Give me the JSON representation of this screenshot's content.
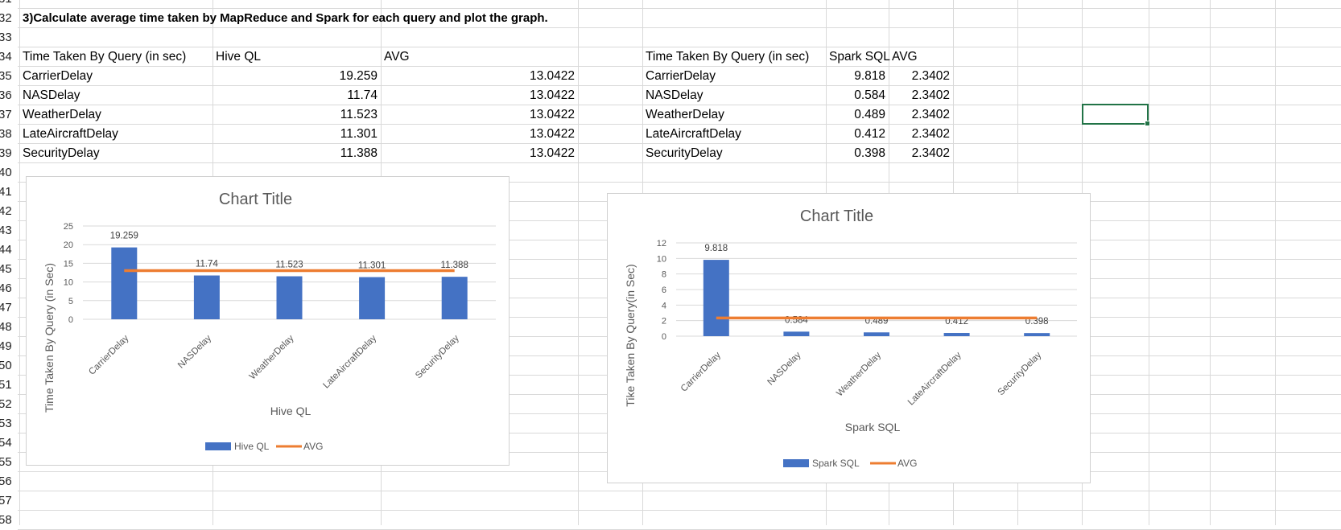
{
  "rows": [
    {
      "num": "31",
      "cells": []
    },
    {
      "num": "32",
      "cells": [
        {
          "col": "A",
          "text": "3)Calculate average time taken by MapReduce and Spark for each query and plot the graph.",
          "cls": "title32"
        }
      ]
    },
    {
      "num": "33",
      "cells": []
    },
    {
      "num": "34",
      "cells": [
        {
          "col": "A",
          "text": "Time Taken By Query (in sec)"
        },
        {
          "col": "B",
          "text": "Hive QL"
        },
        {
          "col": "C",
          "text": "AVG"
        },
        {
          "col": "E",
          "text": "Time Taken By Query (in sec)"
        },
        {
          "col": "F",
          "text": "Spark SQL"
        },
        {
          "col": "G",
          "text": "AVG"
        }
      ]
    },
    {
      "num": "35",
      "cells": [
        {
          "col": "A",
          "text": "CarrierDelay"
        },
        {
          "col": "B",
          "text": "19.259",
          "num": true
        },
        {
          "col": "C",
          "text": "13.0422",
          "num": true
        },
        {
          "col": "E",
          "text": "CarrierDelay"
        },
        {
          "col": "F",
          "text": "9.818",
          "num": true
        },
        {
          "col": "G",
          "text": "2.3402",
          "num": true
        }
      ]
    },
    {
      "num": "36",
      "cells": [
        {
          "col": "A",
          "text": "NASDelay"
        },
        {
          "col": "B",
          "text": "11.74",
          "num": true
        },
        {
          "col": "C",
          "text": "13.0422",
          "num": true
        },
        {
          "col": "E",
          "text": "NASDelay"
        },
        {
          "col": "F",
          "text": "0.584",
          "num": true
        },
        {
          "col": "G",
          "text": "2.3402",
          "num": true
        }
      ]
    },
    {
      "num": "37",
      "cells": [
        {
          "col": "A",
          "text": "WeatherDelay"
        },
        {
          "col": "B",
          "text": "11.523",
          "num": true
        },
        {
          "col": "C",
          "text": "13.0422",
          "num": true
        },
        {
          "col": "E",
          "text": "WeatherDelay"
        },
        {
          "col": "F",
          "text": "0.489",
          "num": true
        },
        {
          "col": "G",
          "text": "2.3402",
          "num": true
        }
      ]
    },
    {
      "num": "38",
      "cells": [
        {
          "col": "A",
          "text": "LateAircraftDelay"
        },
        {
          "col": "B",
          "text": "11.301",
          "num": true
        },
        {
          "col": "C",
          "text": "13.0422",
          "num": true
        },
        {
          "col": "E",
          "text": "LateAircraftDelay"
        },
        {
          "col": "F",
          "text": "0.412",
          "num": true
        },
        {
          "col": "G",
          "text": "2.3402",
          "num": true
        }
      ]
    },
    {
      "num": "39",
      "cells": [
        {
          "col": "A",
          "text": "SecurityDelay"
        },
        {
          "col": "B",
          "text": "11.388",
          "num": true
        },
        {
          "col": "C",
          "text": "13.0422",
          "num": true
        },
        {
          "col": "E",
          "text": "SecurityDelay"
        },
        {
          "col": "F",
          "text": "0.398",
          "num": true
        },
        {
          "col": "G",
          "text": "2.3402",
          "num": true
        }
      ]
    },
    {
      "num": "40",
      "cells": []
    },
    {
      "num": "41",
      "cells": []
    },
    {
      "num": "42",
      "cells": []
    },
    {
      "num": "43",
      "cells": []
    },
    {
      "num": "44",
      "cells": []
    },
    {
      "num": "45",
      "cells": []
    },
    {
      "num": "46",
      "cells": []
    },
    {
      "num": "47",
      "cells": []
    },
    {
      "num": "48",
      "cells": []
    },
    {
      "num": "49",
      "cells": []
    },
    {
      "num": "50",
      "cells": []
    },
    {
      "num": "51",
      "cells": []
    },
    {
      "num": "52",
      "cells": []
    },
    {
      "num": "53",
      "cells": []
    },
    {
      "num": "54",
      "cells": []
    },
    {
      "num": "55",
      "cells": []
    },
    {
      "num": "56",
      "cells": []
    },
    {
      "num": "57",
      "cells": []
    },
    {
      "num": "58",
      "cells": []
    }
  ],
  "colors": {
    "bar": "#4472c4",
    "avg_line": "#ed7d31",
    "gridline": "#d9d9d9",
    "selection": "#217346"
  },
  "chart_data": [
    {
      "type": "bar",
      "title": "Chart Title",
      "xlabel": "Hive QL",
      "ylabel": "Time Taken By Query (in Sec)",
      "categories": [
        "CarrierDelay",
        "NASDelay",
        "WeatherDelay",
        "LateAircraftDelay",
        "SecurityDelay"
      ],
      "ylim": [
        0,
        25
      ],
      "yticks": [
        0,
        5,
        10,
        15,
        20,
        25
      ],
      "grid": true,
      "legend": "bottom",
      "series": [
        {
          "name": "Hive QL",
          "kind": "bar",
          "values": [
            19.259,
            11.74,
            11.523,
            11.301,
            11.388
          ],
          "data_labels": [
            "19.259",
            "11.74",
            "11.523",
            "11.301",
            "11.388"
          ]
        },
        {
          "name": "AVG",
          "kind": "line",
          "values": [
            13.0422,
            13.0422,
            13.0422,
            13.0422,
            13.0422
          ]
        }
      ]
    },
    {
      "type": "bar",
      "title": "Chart Title",
      "xlabel": "Spark SQL",
      "ylabel": "Tike Taken By Query(in Sec)",
      "categories": [
        "CarrierDelay",
        "NASDelay",
        "WeatherDelay",
        "LateAircraftDelay",
        "SecurityDelay"
      ],
      "ylim": [
        0,
        12
      ],
      "yticks": [
        0,
        2,
        4,
        6,
        8,
        10,
        12
      ],
      "grid": true,
      "legend": "bottom",
      "series": [
        {
          "name": "Spark SQL",
          "kind": "bar",
          "values": [
            9.818,
            0.584,
            0.489,
            0.412,
            0.398
          ],
          "data_labels": [
            "9.818",
            "0.584",
            "0.489",
            "0.412",
            "0.398"
          ]
        },
        {
          "name": "AVG",
          "kind": "line",
          "values": [
            2.3402,
            2.3402,
            2.3402,
            2.3402,
            2.3402
          ]
        }
      ]
    }
  ]
}
